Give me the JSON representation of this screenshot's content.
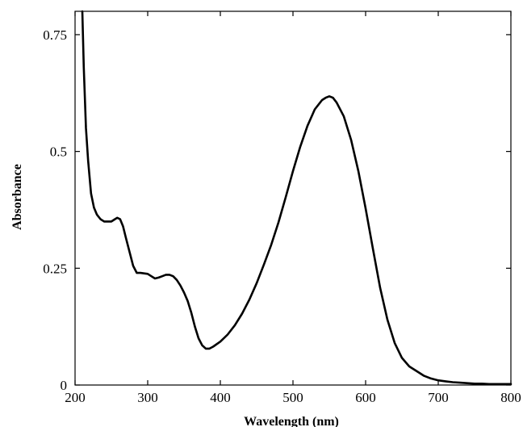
{
  "chart_data": {
    "type": "line",
    "title": "",
    "xlabel": "Wavelength (nm)",
    "ylabel": "Absorbance",
    "xlim": [
      200,
      800
    ],
    "ylim": [
      0,
      0.8
    ],
    "grid": false,
    "x_ticks": [
      200,
      300,
      400,
      500,
      600,
      700,
      800
    ],
    "y_ticks": [
      0,
      0.25,
      0.5,
      0.75
    ],
    "x_tick_labels": [
      "200",
      "300",
      "400",
      "500",
      "600",
      "700",
      "800"
    ],
    "y_tick_labels": [
      "0",
      "0.25",
      "0.5",
      "0.75"
    ],
    "series": [
      {
        "x": [
          210,
          212,
          215,
          218,
          222,
          226,
          230,
          235,
          240,
          245,
          250,
          255,
          258,
          262,
          266,
          270,
          275,
          280,
          285,
          290,
          300,
          305,
          310,
          315,
          320,
          325,
          330,
          335,
          340,
          345,
          350,
          355,
          360,
          365,
          370,
          375,
          380,
          385,
          390,
          400,
          410,
          420,
          430,
          440,
          450,
          460,
          470,
          480,
          490,
          500,
          510,
          520,
          530,
          540,
          545,
          550,
          555,
          560,
          570,
          580,
          590,
          600,
          610,
          620,
          630,
          640,
          650,
          660,
          670,
          680,
          690,
          700,
          710,
          720,
          730,
          740,
          750,
          760,
          770,
          780,
          790,
          800
        ],
        "y": [
          0.8,
          0.68,
          0.55,
          0.48,
          0.41,
          0.38,
          0.365,
          0.355,
          0.35,
          0.35,
          0.35,
          0.355,
          0.358,
          0.355,
          0.34,
          0.315,
          0.285,
          0.255,
          0.24,
          0.24,
          0.238,
          0.233,
          0.228,
          0.23,
          0.233,
          0.236,
          0.236,
          0.233,
          0.225,
          0.213,
          0.198,
          0.18,
          0.155,
          0.125,
          0.1,
          0.085,
          0.078,
          0.078,
          0.082,
          0.093,
          0.108,
          0.128,
          0.153,
          0.183,
          0.218,
          0.258,
          0.3,
          0.348,
          0.402,
          0.458,
          0.51,
          0.555,
          0.59,
          0.61,
          0.615,
          0.618,
          0.615,
          0.605,
          0.575,
          0.525,
          0.458,
          0.378,
          0.292,
          0.208,
          0.14,
          0.09,
          0.058,
          0.04,
          0.03,
          0.02,
          0.014,
          0.01,
          0.008,
          0.006,
          0.005,
          0.004,
          0.003,
          0.003,
          0.002,
          0.002,
          0.002,
          0.002
        ]
      }
    ]
  }
}
